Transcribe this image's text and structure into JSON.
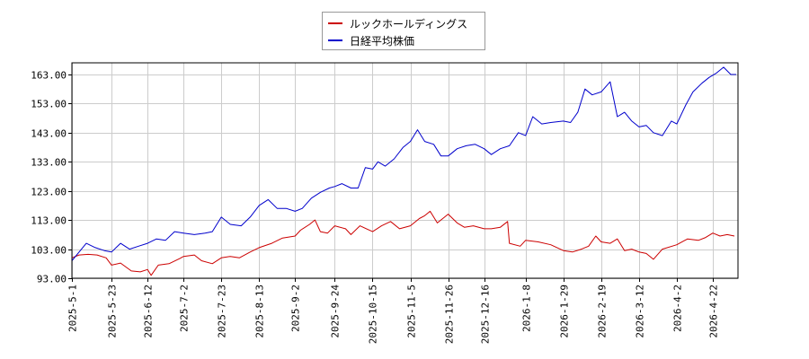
{
  "chart_data": {
    "type": "line",
    "title": "",
    "xlabel": "",
    "ylabel": "",
    "ylim": [
      93,
      167
    ],
    "xlim": [
      "2025-05-01",
      "2026-05-06"
    ],
    "grid": true,
    "legend_position": "top-center",
    "y_ticks": [
      "93.00",
      "103.00",
      "113.00",
      "123.00",
      "133.00",
      "143.00",
      "153.00",
      "163.00"
    ],
    "x_ticks": [
      "2025-5-1",
      "2025-5-23",
      "2025-6-12",
      "2025-7-2",
      "2025-7-23",
      "2025-8-13",
      "2025-9-2",
      "2025-9-24",
      "2025-10-15",
      "2025-11-5",
      "2025-11-26",
      "2025-12-16",
      "2026-1-8",
      "2026-1-29",
      "2026-2-19",
      "2026-3-12",
      "2026-4-2",
      "2026-4-22"
    ],
    "series": [
      {
        "name": "ルックホールディングス",
        "color": "#cc0000",
        "points": [
          [
            "2025-05-01",
            100.0
          ],
          [
            "2025-05-05",
            101.0
          ],
          [
            "2025-05-10",
            101.2
          ],
          [
            "2025-05-15",
            101.0
          ],
          [
            "2025-05-20",
            100.0
          ],
          [
            "2025-05-23",
            97.5
          ],
          [
            "2025-05-28",
            98.2
          ],
          [
            "2025-06-03",
            95.5
          ],
          [
            "2025-06-08",
            95.2
          ],
          [
            "2025-06-12",
            96.0
          ],
          [
            "2025-06-14",
            94.0
          ],
          [
            "2025-06-18",
            97.5
          ],
          [
            "2025-06-24",
            98.0
          ],
          [
            "2025-06-30",
            99.8
          ],
          [
            "2025-07-02",
            100.5
          ],
          [
            "2025-07-08",
            101.0
          ],
          [
            "2025-07-12",
            99.0
          ],
          [
            "2025-07-18",
            98.0
          ],
          [
            "2025-07-23",
            100.0
          ],
          [
            "2025-07-28",
            100.5
          ],
          [
            "2025-08-02",
            100.0
          ],
          [
            "2025-08-08",
            102.0
          ],
          [
            "2025-08-13",
            103.5
          ],
          [
            "2025-08-20",
            105.0
          ],
          [
            "2025-08-26",
            106.8
          ],
          [
            "2025-09-02",
            107.5
          ],
          [
            "2025-09-05",
            109.5
          ],
          [
            "2025-09-10",
            111.5
          ],
          [
            "2025-09-13",
            113.0
          ],
          [
            "2025-09-16",
            109.0
          ],
          [
            "2025-09-20",
            108.5
          ],
          [
            "2025-09-24",
            111.0
          ],
          [
            "2025-09-30",
            110.0
          ],
          [
            "2025-10-03",
            108.0
          ],
          [
            "2025-10-08",
            111.0
          ],
          [
            "2025-10-15",
            109.0
          ],
          [
            "2025-10-20",
            111.0
          ],
          [
            "2025-10-25",
            112.5
          ],
          [
            "2025-10-30",
            110.0
          ],
          [
            "2025-11-05",
            111.0
          ],
          [
            "2025-11-10",
            113.5
          ],
          [
            "2025-11-13",
            114.5
          ],
          [
            "2025-11-16",
            116.0
          ],
          [
            "2025-11-20",
            112.0
          ],
          [
            "2025-11-26",
            115.0
          ],
          [
            "2025-12-01",
            112.0
          ],
          [
            "2025-12-05",
            110.5
          ],
          [
            "2025-12-10",
            111.0
          ],
          [
            "2025-12-16",
            110.0
          ],
          [
            "2025-12-20",
            110.0
          ],
          [
            "2025-12-25",
            110.5
          ],
          [
            "2025-12-29",
            112.5
          ],
          [
            "2025-12-30",
            105.0
          ],
          [
            "2026-01-05",
            104.0
          ],
          [
            "2026-01-08",
            106.0
          ],
          [
            "2026-01-15",
            105.5
          ],
          [
            "2026-01-22",
            104.5
          ],
          [
            "2026-01-29",
            102.5
          ],
          [
            "2026-02-03",
            102.0
          ],
          [
            "2026-02-08",
            103.0
          ],
          [
            "2026-02-12",
            104.0
          ],
          [
            "2026-02-16",
            107.5
          ],
          [
            "2026-02-19",
            105.5
          ],
          [
            "2026-02-24",
            105.0
          ],
          [
            "2026-02-28",
            106.5
          ],
          [
            "2026-03-04",
            102.5
          ],
          [
            "2026-03-08",
            103.0
          ],
          [
            "2026-03-12",
            102.0
          ],
          [
            "2026-03-16",
            101.5
          ],
          [
            "2026-03-20",
            99.5
          ],
          [
            "2026-03-25",
            103.0
          ],
          [
            "2026-04-02",
            104.5
          ],
          [
            "2026-04-08",
            106.5
          ],
          [
            "2026-04-14",
            106.0
          ],
          [
            "2026-04-18",
            107.0
          ],
          [
            "2026-04-22",
            108.5
          ],
          [
            "2026-04-26",
            107.5
          ],
          [
            "2026-04-30",
            108.0
          ],
          [
            "2026-05-04",
            107.5
          ]
        ]
      },
      {
        "name": "日経平均株価",
        "color": "#0000cc",
        "points": [
          [
            "2025-05-01",
            99.0
          ],
          [
            "2025-05-05",
            102.0
          ],
          [
            "2025-05-09",
            105.0
          ],
          [
            "2025-05-14",
            103.5
          ],
          [
            "2025-05-19",
            102.5
          ],
          [
            "2025-05-23",
            102.0
          ],
          [
            "2025-05-28",
            105.0
          ],
          [
            "2025-06-02",
            103.0
          ],
          [
            "2025-06-07",
            104.0
          ],
          [
            "2025-06-12",
            105.0
          ],
          [
            "2025-06-17",
            106.5
          ],
          [
            "2025-06-22",
            106.0
          ],
          [
            "2025-06-27",
            109.0
          ],
          [
            "2025-07-02",
            108.5
          ],
          [
            "2025-07-08",
            108.0
          ],
          [
            "2025-07-14",
            108.5
          ],
          [
            "2025-07-18",
            109.0
          ],
          [
            "2025-07-23",
            114.0
          ],
          [
            "2025-07-28",
            111.5
          ],
          [
            "2025-08-03",
            111.0
          ],
          [
            "2025-08-08",
            114.0
          ],
          [
            "2025-08-13",
            118.0
          ],
          [
            "2025-08-18",
            120.0
          ],
          [
            "2025-08-23",
            117.0
          ],
          [
            "2025-08-28",
            117.0
          ],
          [
            "2025-09-02",
            116.0
          ],
          [
            "2025-09-06",
            117.0
          ],
          [
            "2025-09-11",
            120.5
          ],
          [
            "2025-09-16",
            122.5
          ],
          [
            "2025-09-21",
            124.0
          ],
          [
            "2025-09-24",
            124.5
          ],
          [
            "2025-09-28",
            125.5
          ],
          [
            "2025-10-03",
            124.0
          ],
          [
            "2025-10-07",
            124.0
          ],
          [
            "2025-10-11",
            131.0
          ],
          [
            "2025-10-15",
            130.5
          ],
          [
            "2025-10-18",
            133.0
          ],
          [
            "2025-10-22",
            131.5
          ],
          [
            "2025-10-27",
            134.0
          ],
          [
            "2025-11-01",
            138.0
          ],
          [
            "2025-11-05",
            140.0
          ],
          [
            "2025-11-09",
            144.0
          ],
          [
            "2025-11-13",
            140.0
          ],
          [
            "2025-11-18",
            139.0
          ],
          [
            "2025-11-22",
            135.0
          ],
          [
            "2025-11-26",
            135.0
          ],
          [
            "2025-12-01",
            137.5
          ],
          [
            "2025-12-06",
            138.5
          ],
          [
            "2025-12-11",
            139.0
          ],
          [
            "2025-12-16",
            137.5
          ],
          [
            "2025-12-20",
            135.5
          ],
          [
            "2025-12-25",
            137.5
          ],
          [
            "2025-12-30",
            138.5
          ],
          [
            "2026-01-04",
            143.0
          ],
          [
            "2026-01-08",
            142.0
          ],
          [
            "2026-01-12",
            148.5
          ],
          [
            "2026-01-17",
            146.0
          ],
          [
            "2026-01-22",
            146.5
          ],
          [
            "2026-01-29",
            147.0
          ],
          [
            "2026-02-02",
            146.5
          ],
          [
            "2026-02-06",
            150.0
          ],
          [
            "2026-02-10",
            158.0
          ],
          [
            "2026-02-14",
            156.0
          ],
          [
            "2026-02-19",
            157.0
          ],
          [
            "2026-02-24",
            160.5
          ],
          [
            "2026-02-28",
            148.5
          ],
          [
            "2026-03-04",
            150.0
          ],
          [
            "2026-03-08",
            147.0
          ],
          [
            "2026-03-12",
            145.0
          ],
          [
            "2026-03-16",
            145.5
          ],
          [
            "2026-03-20",
            143.0
          ],
          [
            "2026-03-25",
            142.0
          ],
          [
            "2026-03-30",
            147.0
          ],
          [
            "2026-04-02",
            146.0
          ],
          [
            "2026-04-07",
            152.5
          ],
          [
            "2026-04-11",
            157.0
          ],
          [
            "2026-04-16",
            160.0
          ],
          [
            "2026-04-20",
            162.0
          ],
          [
            "2026-04-24",
            163.5
          ],
          [
            "2026-04-28",
            165.5
          ],
          [
            "2026-05-02",
            163.0
          ],
          [
            "2026-05-05",
            163.0
          ]
        ]
      }
    ]
  }
}
